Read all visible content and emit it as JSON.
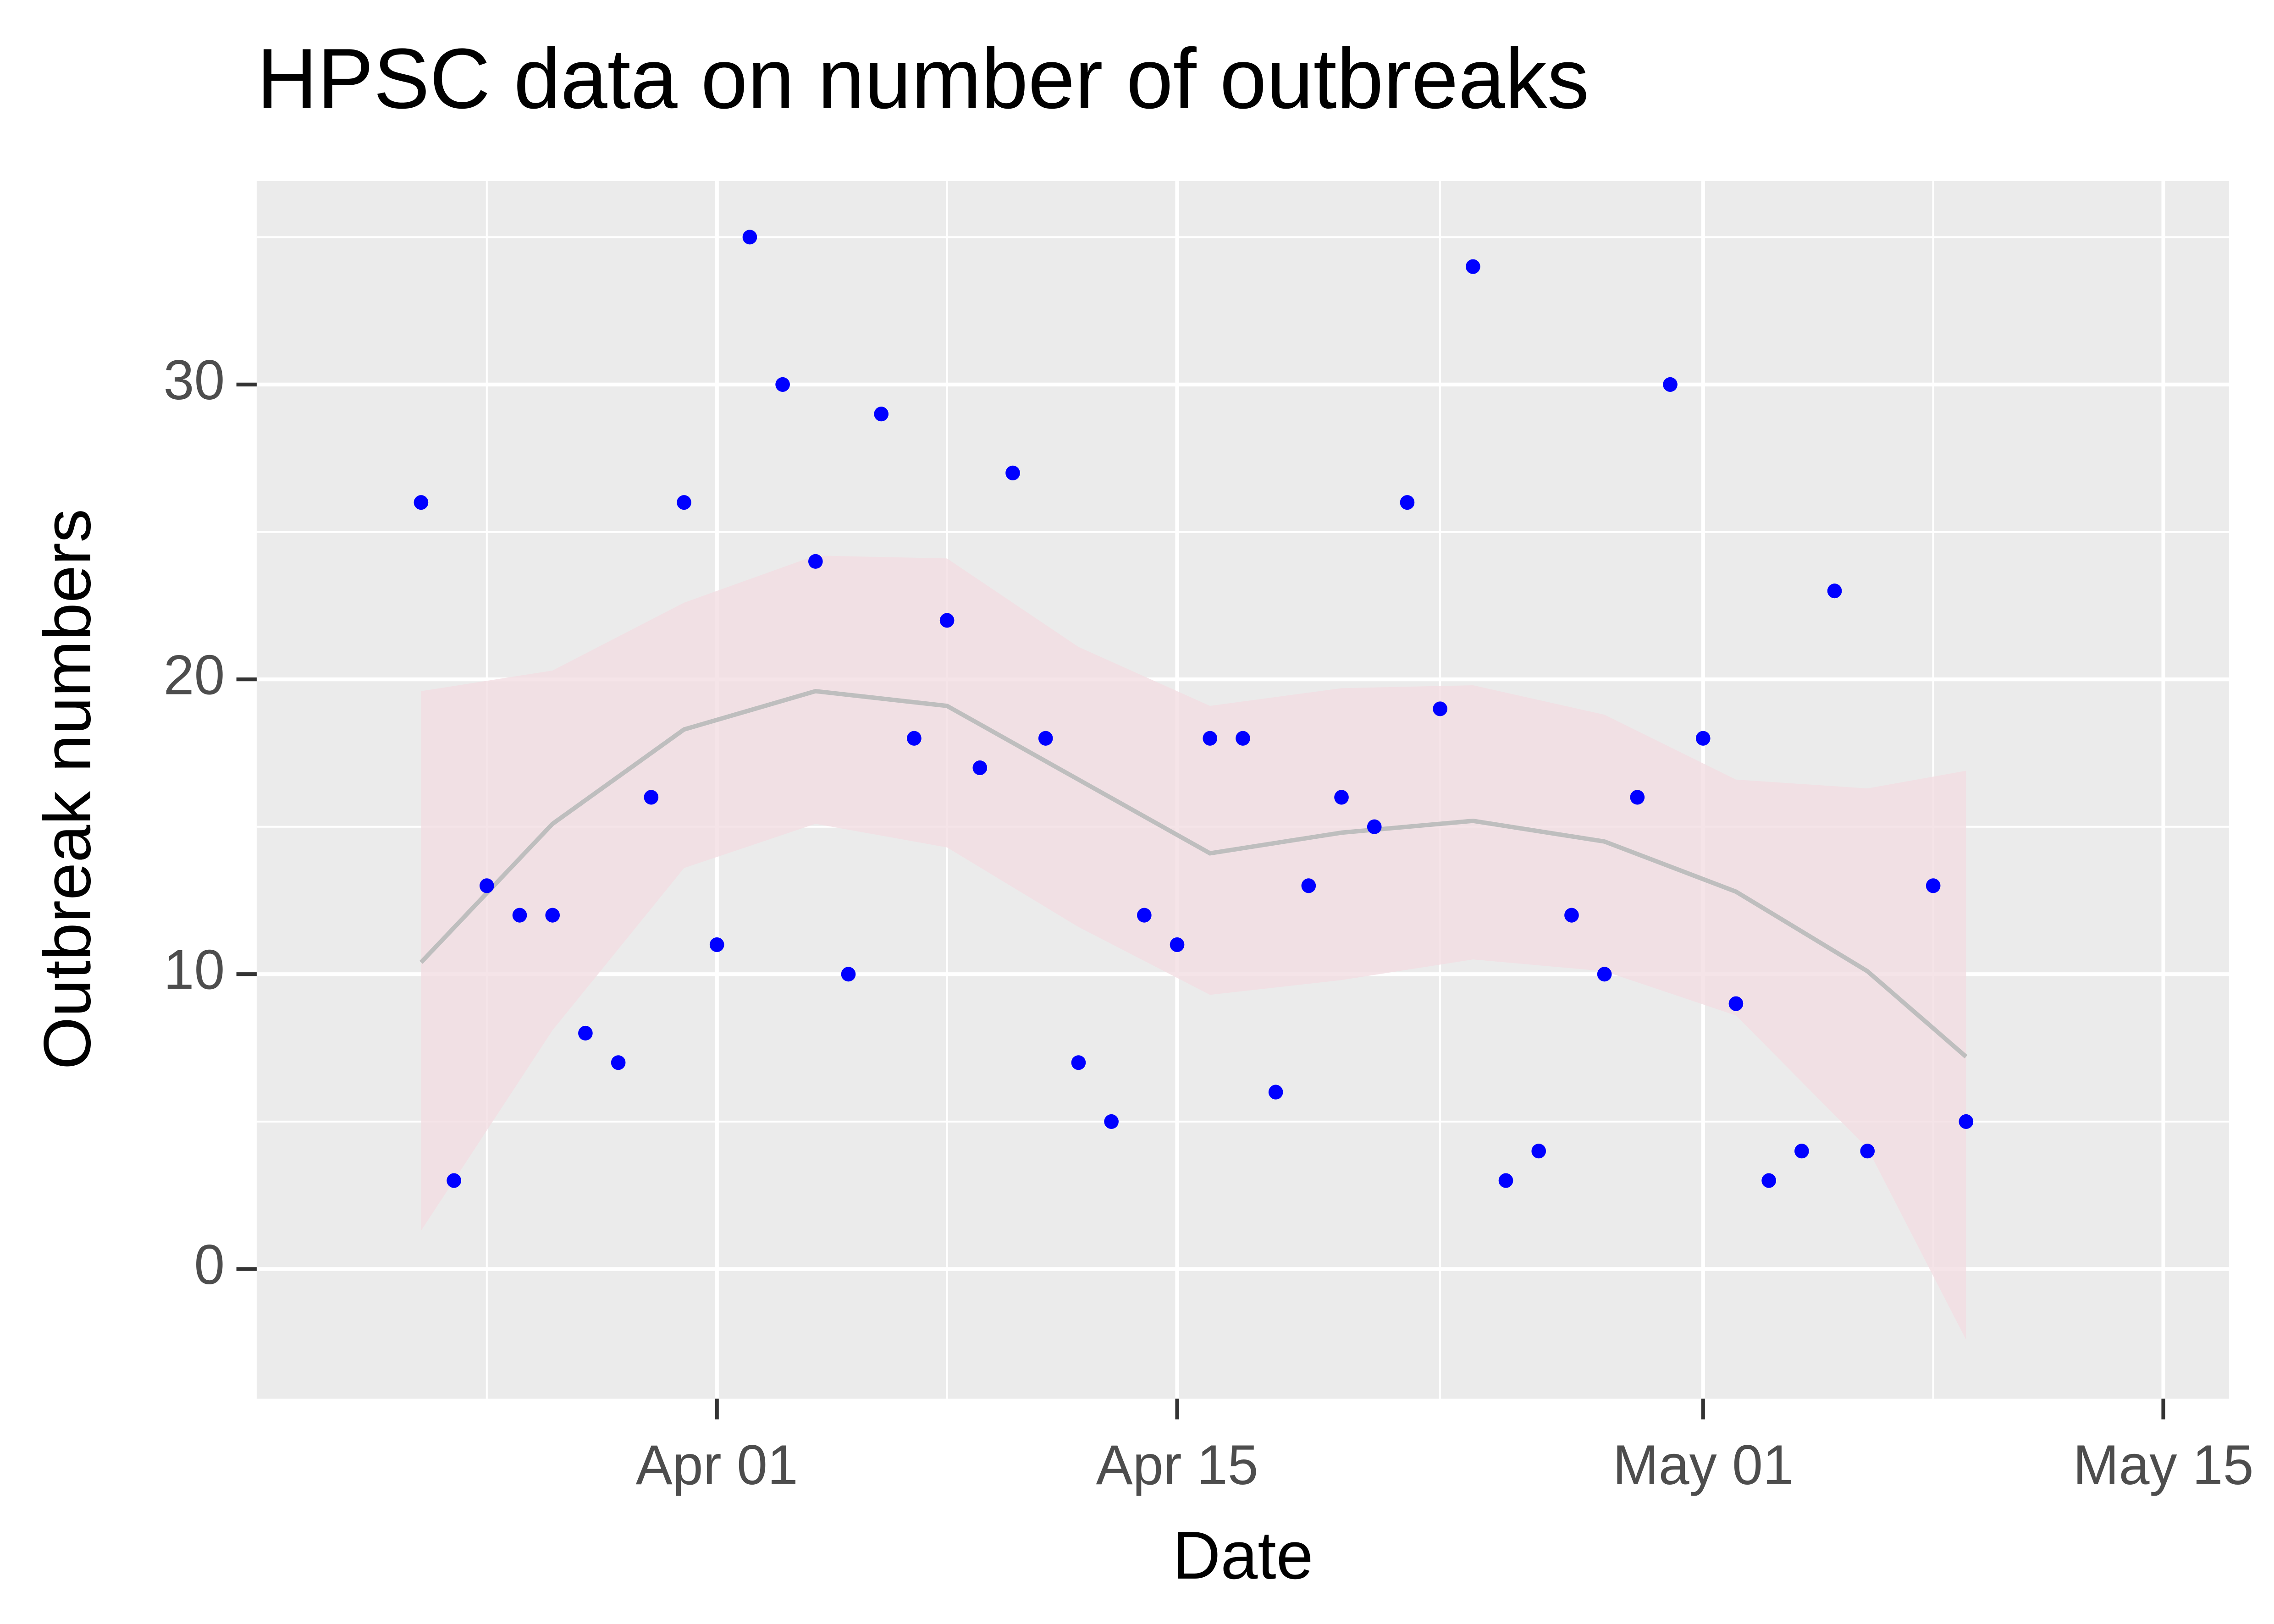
{
  "chart_data": {
    "type": "scatter",
    "title": "HPSC data on number of outbreaks",
    "x_label": "Date",
    "y_label": "Outbreak numbers",
    "x": [
      "Mar 23",
      "Mar 24",
      "Mar 25",
      "Mar 26",
      "Mar 27",
      "Mar 28",
      "Mar 29",
      "Mar 30",
      "Mar 31",
      "Apr 01",
      "Apr 02",
      "Apr 03",
      "Apr 04",
      "Apr 05",
      "Apr 06",
      "Apr 07",
      "Apr 08",
      "Apr 09",
      "Apr 10",
      "Apr 11",
      "Apr 12",
      "Apr 13",
      "Apr 14",
      "Apr 15",
      "Apr 16",
      "Apr 17",
      "Apr 18",
      "Apr 19",
      "Apr 20",
      "Apr 21",
      "Apr 22",
      "Apr 23",
      "Apr 24",
      "Apr 25",
      "Apr 26",
      "Apr 27",
      "Apr 28",
      "Apr 29",
      "Apr 30",
      "May 01",
      "May 02",
      "May 03",
      "May 04",
      "May 05",
      "May 06",
      "May 08",
      "May 09"
    ],
    "values": [
      26,
      3,
      13,
      12,
      12,
      8,
      7,
      16,
      26,
      11,
      35,
      30,
      24,
      10,
      29,
      18,
      22,
      17,
      27,
      18,
      7,
      5,
      12,
      11,
      18,
      18,
      6,
      13,
      16,
      15,
      26,
      19,
      34,
      3,
      4,
      12,
      10,
      16,
      30,
      18,
      9,
      3,
      4,
      23,
      4,
      13,
      5
    ],
    "color": "#0000ff",
    "smooth": {
      "x": [
        "Mar 23",
        "Mar 27",
        "Mar 31",
        "Apr 04",
        "Apr 08",
        "Apr 12",
        "Apr 16",
        "Apr 20",
        "Apr 24",
        "Apr 28",
        "May 02",
        "May 06",
        "May 09"
      ],
      "values": [
        10.4,
        15.1,
        18.3,
        19.6,
        19.1,
        16.6,
        14.1,
        14.8,
        15.2,
        14.5,
        12.8,
        10.1,
        7.2
      ],
      "lower": [
        1.3,
        8.1,
        13.6,
        15.1,
        14.3,
        11.6,
        9.3,
        9.8,
        10.5,
        10.1,
        8.6,
        4.1,
        -2.4
      ],
      "upper": [
        19.6,
        20.3,
        22.6,
        24.2,
        24.1,
        21.1,
        19.1,
        19.7,
        19.8,
        18.8,
        16.6,
        16.3,
        16.9
      ],
      "color": "#bebebe",
      "fill": "#f3dde2"
    },
    "xlim": [
      "Mar 18",
      "May 17"
    ],
    "xticks": [
      "Apr 01",
      "Apr 15",
      "May 01",
      "May 15"
    ],
    "ylim": [
      -4.4,
      36.9
    ],
    "yticks": [
      0,
      10,
      20,
      30
    ],
    "grid": true
  }
}
